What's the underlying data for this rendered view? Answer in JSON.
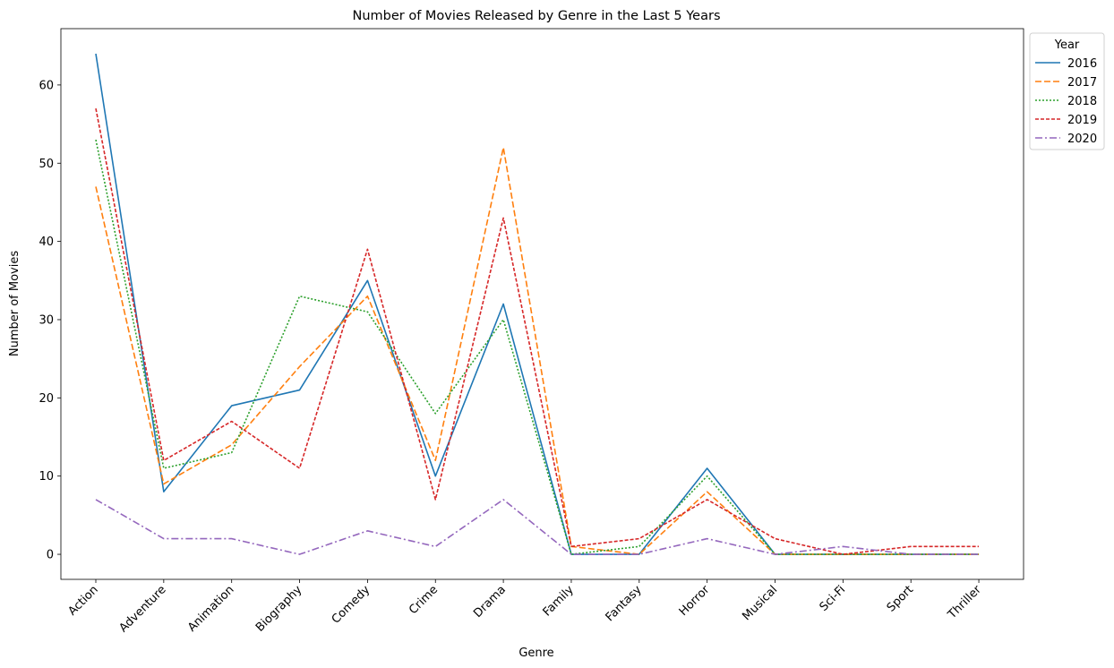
{
  "chart_data": {
    "type": "line",
    "title": "Number of Movies Released by Genre in the Last 5 Years",
    "xlabel": "Genre",
    "ylabel": "Number of Movies",
    "categories": [
      "Action",
      "Adventure",
      "Animation",
      "Biography",
      "Comedy",
      "Crime",
      "Drama",
      "Family",
      "Fantasy",
      "Horror",
      "Musical",
      "Sci-Fi",
      "Sport",
      "Thriller"
    ],
    "ylim": [
      -3.2,
      67.2
    ],
    "yticks": [
      0,
      10,
      20,
      30,
      40,
      50,
      60
    ],
    "grid": false,
    "legend": {
      "title": "Year",
      "placement": "outside top-right"
    },
    "series": [
      {
        "name": "2016",
        "color": "#1f77b4",
        "style": "solid",
        "values": [
          64,
          8,
          19,
          21,
          35,
          10,
          32,
          0,
          0,
          11,
          0,
          0,
          0,
          0
        ]
      },
      {
        "name": "2017",
        "color": "#ff7f0e",
        "style": "dashed",
        "values": [
          47,
          9,
          14,
          24,
          33,
          12,
          52,
          1,
          0,
          8,
          0,
          0,
          0,
          0
        ]
      },
      {
        "name": "2018",
        "color": "#2ca02c",
        "style": "dotted",
        "values": [
          53,
          11,
          13,
          33,
          31,
          18,
          30,
          0,
          1,
          10,
          0,
          0,
          0,
          0
        ]
      },
      {
        "name": "2019",
        "color": "#d62728",
        "style": "densely-dashed",
        "values": [
          57,
          12,
          17,
          11,
          39,
          7,
          43,
          1,
          2,
          7,
          2,
          0,
          1,
          1
        ]
      },
      {
        "name": "2020",
        "color": "#9467bd",
        "style": "dashdot",
        "values": [
          7,
          2,
          2,
          0,
          3,
          1,
          7,
          0,
          0,
          2,
          0,
          1,
          0,
          0
        ]
      }
    ]
  }
}
